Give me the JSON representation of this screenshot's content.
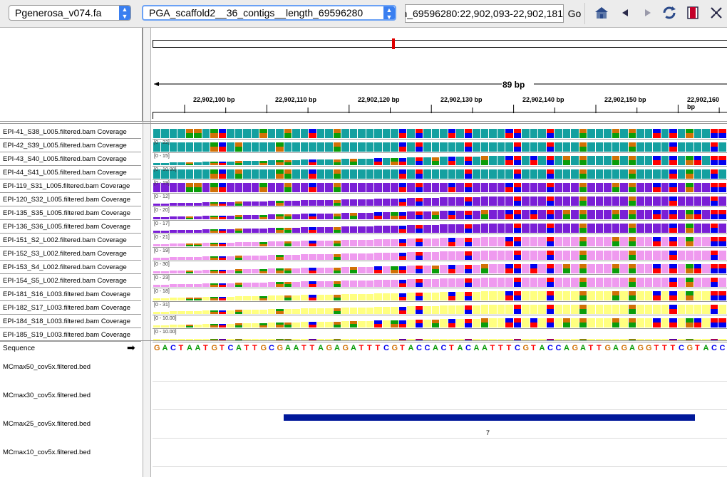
{
  "toolbar": {
    "genome": "Pgenerosa_v074.fa",
    "chromosome": "PGA_scaffold2__36_contigs__length_69596280",
    "locus": "PGA_scaffold2__36_contigs__length_69596280:22,902,093-22,902,181",
    "go_label": "Go",
    "icons": [
      "home-icon",
      "back-icon",
      "forward-icon",
      "refresh-icon",
      "region-icon",
      "resize-icon"
    ]
  },
  "ruler": {
    "span_label": "89 bp",
    "ticks": [
      "22,902,100 bp",
      "22,902,110 bp",
      "22,902,120 bp",
      "22,902,130 bp",
      "22,902,140 bp",
      "22,902,150 bp",
      "22,902,160 bp"
    ]
  },
  "colors": {
    "teal": "#14a0a0",
    "purple": "#7a1fd6",
    "pink": "#ef9aef",
    "yellow": "#ffff80",
    "base_A": "#0a9d0a",
    "base_C": "#0000f0",
    "base_G": "#d17105",
    "base_T": "#ff0000",
    "feature": "#00189a"
  },
  "tracks": [
    {
      "name": "EPI-41_S38_L005.filtered.bam Coverage",
      "range": "",
      "color": "teal"
    },
    {
      "name": "EPI-42_S39_L005.filtered.bam Coverage",
      "range": "[0 - 22]",
      "color": "teal"
    },
    {
      "name": "EPI-43_S40_L005.filtered.bam Coverage",
      "range": "[0 - 15]",
      "color": "teal"
    },
    {
      "name": "EPI-44_S41_L005.filtered.bam Coverage",
      "range": "[0 - 10.00]",
      "color": "teal"
    },
    {
      "name": "EPI-119_S31_L005.filtered.bam Coverage",
      "range": "[0 - 19]",
      "color": "purple"
    },
    {
      "name": "EPI-120_S32_L005.filtered.bam Coverage",
      "range": "[0 - 12]",
      "color": "purple"
    },
    {
      "name": "EPI-135_S35_L005.filtered.bam Coverage",
      "range": "[0 - 20]",
      "color": "purple"
    },
    {
      "name": "EPI-136_S36_L005.filtered.bam Coverage",
      "range": "[0 - 17]",
      "color": "purple"
    },
    {
      "name": "EPI-151_S2_L002.filtered.bam Coverage",
      "range": "[0 - 21]",
      "color": "pink"
    },
    {
      "name": "EPI-152_S3_L002.filtered.bam Coverage",
      "range": "[0 - 19]",
      "color": "pink"
    },
    {
      "name": "EPI-153_S4_L002.filtered.bam Coverage",
      "range": "[0 - 30]",
      "color": "pink"
    },
    {
      "name": "EPI-154_S5_L002.filtered.bam Coverage",
      "range": "[0 - 23]",
      "color": "pink"
    },
    {
      "name": "EPI-181_S16_L003.filtered.bam Coverage",
      "range": "[0 - 18]",
      "color": "yellow"
    },
    {
      "name": "EPI-182_S17_L003.filtered.bam Coverage",
      "range": "[0 - 31]",
      "color": "yellow"
    },
    {
      "name": "EPI-184_S18_L003.filtered.bam Coverage",
      "range": "[0 - 10.00]",
      "color": "yellow"
    },
    {
      "name": "EPI-185_S19_L003.filtered.bam Coverage",
      "range": "[0 - 10.00]",
      "color": "yellow"
    }
  ],
  "sequence": {
    "label": "Sequence",
    "bases": "GACTAATGTCATTGCGAATTAGAGATTTCGTACCACTACAATTTCGTACCAGATTGAGAGGTTTCGTACC"
  },
  "bed_tracks": [
    {
      "name": "MCmax50_cov5x.filtered.bed"
    },
    {
      "name": "MCmax30_cov5x.filtered.bed"
    },
    {
      "name": "MCmax25_cov5x.filtered.bed",
      "feature_label": "7"
    },
    {
      "name": "MCmax10_cov5x.filtered.bed"
    }
  ]
}
